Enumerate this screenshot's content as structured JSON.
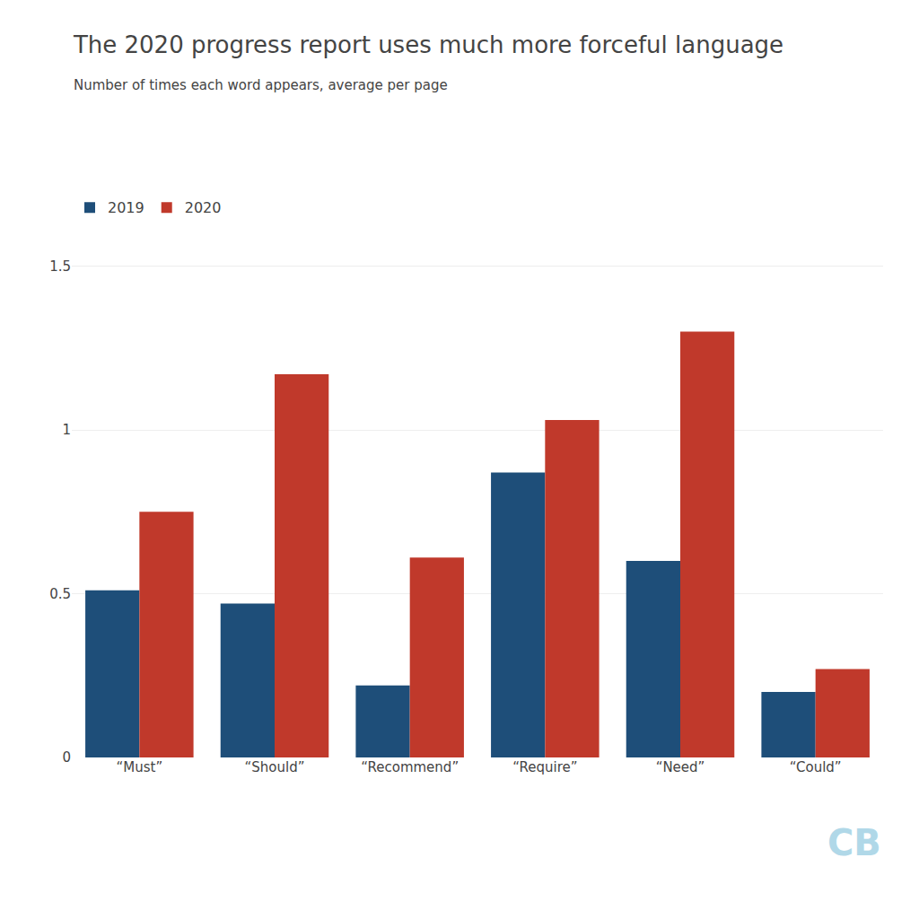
{
  "chart_data": {
    "type": "bar",
    "title": "The 2020 progress report uses much more forceful language",
    "subtitle": "Number of times each word appears, average per page",
    "categories": [
      "“Must”",
      "“Should”",
      "“Recommend”",
      "“Require”",
      "“Need”",
      "“Could”"
    ],
    "series": [
      {
        "name": "2019",
        "color": "#1e4e79",
        "values": [
          0.51,
          0.47,
          0.22,
          0.87,
          0.6,
          0.2
        ]
      },
      {
        "name": "2020",
        "color": "#c0392b",
        "values": [
          0.75,
          1.17,
          0.61,
          1.03,
          1.3,
          0.27
        ]
      }
    ],
    "ylim": [
      0,
      1.6
    ],
    "yticks": [
      0,
      0.5,
      1,
      1.5
    ],
    "grid": true,
    "legend": "upper left",
    "annotations": [
      "CB"
    ]
  }
}
